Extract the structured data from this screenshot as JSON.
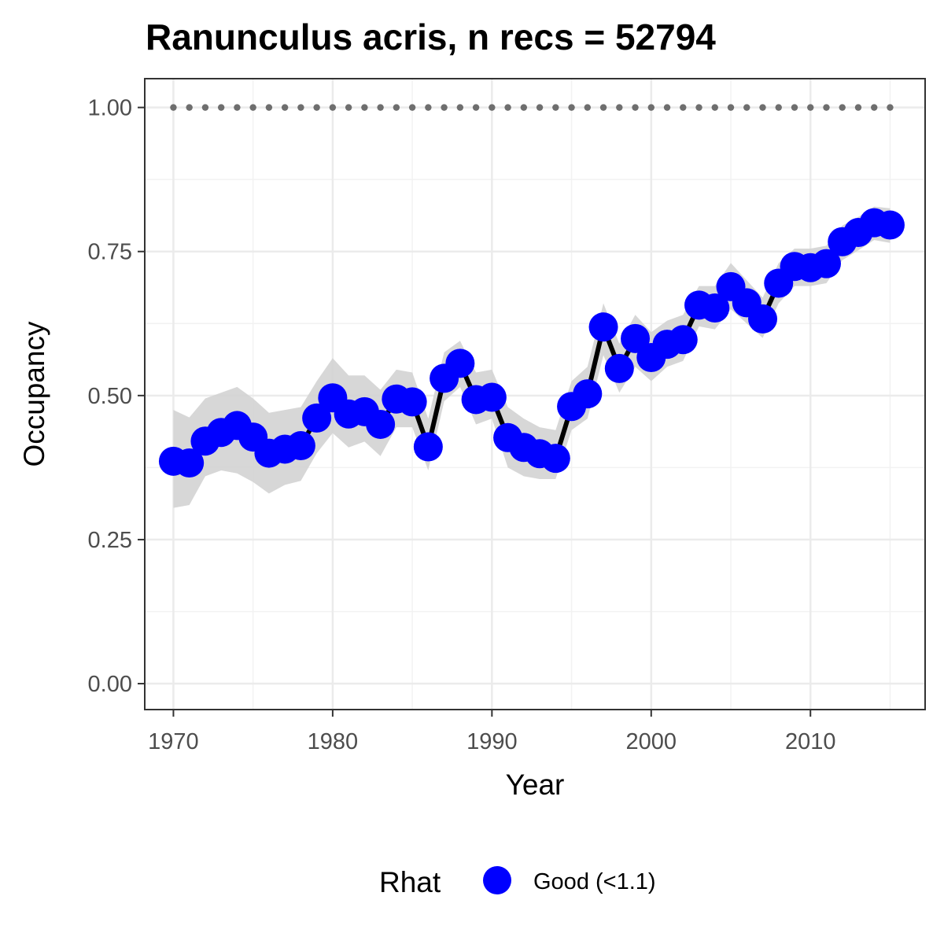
{
  "chart_data": {
    "type": "line",
    "title": "Ranunculus acris, n recs = 52794",
    "xlabel": "Year",
    "ylabel": "Occupancy",
    "xlim": [
      1968.2,
      2017.2
    ],
    "ylim": [
      -0.045,
      1.05
    ],
    "x_ticks": [
      1970,
      1980,
      1990,
      2000,
      2010
    ],
    "y_ticks": [
      0.0,
      0.25,
      0.5,
      0.75,
      1.0
    ],
    "y_tick_labels": [
      "0.00",
      "0.25",
      "0.50",
      "0.75",
      "1.00"
    ],
    "grid": true,
    "legend": {
      "position": "bottom",
      "title": "Rhat",
      "entries": [
        {
          "label": "Good (<1.1)",
          "color": "#0000ff"
        }
      ]
    },
    "colors": {
      "points": "#0000ff",
      "line": "#000000",
      "ribbon": "#d3d3d3",
      "reference": "#6e6e6e"
    },
    "reference_line": {
      "y": 1.0,
      "style": "dotted"
    },
    "x": [
      1970,
      1971,
      1972,
      1973,
      1974,
      1975,
      1976,
      1977,
      1978,
      1979,
      1980,
      1981,
      1982,
      1983,
      1984,
      1985,
      1986,
      1987,
      1988,
      1989,
      1990,
      1991,
      1992,
      1993,
      1994,
      1995,
      1996,
      1997,
      1998,
      1999,
      2000,
      2001,
      2002,
      2003,
      2004,
      2005,
      2006,
      2007,
      2008,
      2009,
      2010,
      2011,
      2012,
      2013,
      2014,
      2015
    ],
    "series": [
      {
        "values": [
          0.386,
          0.383,
          0.421,
          0.436,
          0.448,
          0.428,
          0.4,
          0.407,
          0.413,
          0.461,
          0.496,
          0.468,
          0.472,
          0.45,
          0.494,
          0.489,
          0.411,
          0.53,
          0.556,
          0.493,
          0.497,
          0.427,
          0.41,
          0.399,
          0.391,
          0.481,
          0.503,
          0.619,
          0.547,
          0.599,
          0.566,
          0.589,
          0.597,
          0.657,
          0.652,
          0.689,
          0.661,
          0.633,
          0.695,
          0.724,
          0.722,
          0.729,
          0.767,
          0.783,
          0.8,
          0.796
        ],
        "lower": [
          0.305,
          0.31,
          0.36,
          0.37,
          0.365,
          0.35,
          0.33,
          0.345,
          0.352,
          0.4,
          0.435,
          0.41,
          0.42,
          0.395,
          0.445,
          0.445,
          0.37,
          0.49,
          0.515,
          0.45,
          0.46,
          0.375,
          0.36,
          0.355,
          0.355,
          0.44,
          0.46,
          0.57,
          0.505,
          0.55,
          0.525,
          0.55,
          0.56,
          0.62,
          0.615,
          0.65,
          0.625,
          0.6,
          0.66,
          0.69,
          0.69,
          0.695,
          0.735,
          0.752,
          0.77,
          0.765
        ],
        "upper": [
          0.475,
          0.462,
          0.495,
          0.505,
          0.515,
          0.495,
          0.47,
          0.475,
          0.48,
          0.525,
          0.565,
          0.535,
          0.535,
          0.51,
          0.545,
          0.54,
          0.46,
          0.575,
          0.595,
          0.54,
          0.545,
          0.48,
          0.46,
          0.445,
          0.44,
          0.525,
          0.55,
          0.66,
          0.59,
          0.64,
          0.61,
          0.63,
          0.64,
          0.69,
          0.69,
          0.73,
          0.7,
          0.67,
          0.73,
          0.755,
          0.755,
          0.76,
          0.795,
          0.81,
          0.828,
          0.825
        ]
      }
    ]
  }
}
